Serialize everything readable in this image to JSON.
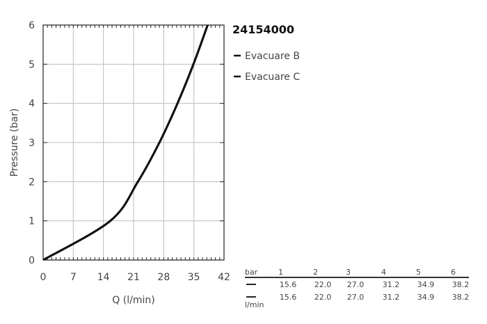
{
  "chart_data": {
    "type": "line",
    "title": "24154000",
    "xlabel": "Q (l/min)",
    "ylabel": "Pressure (bar)",
    "xlim": [
      0,
      42
    ],
    "ylim": [
      0,
      6
    ],
    "x_ticks": [
      "0",
      "7",
      "14",
      "21",
      "28",
      "35",
      "42"
    ],
    "y_ticks": [
      "0",
      "1",
      "2",
      "3",
      "4",
      "5",
      "6"
    ],
    "grid": true,
    "legend_position": "top-right",
    "series": [
      {
        "name": "Evacuare B",
        "color": "#111111",
        "x": [
          0,
          15.6,
          22.0,
          27.0,
          31.2,
          34.9,
          38.2
        ],
        "y": [
          0,
          1,
          2,
          3,
          4,
          5,
          6
        ]
      },
      {
        "name": "Evacuare C",
        "color": "#111111",
        "x": [
          0,
          15.6,
          22.0,
          27.0,
          31.2,
          34.9,
          38.2
        ],
        "y": [
          0,
          1,
          2,
          3,
          4,
          5,
          6
        ]
      }
    ]
  },
  "table": {
    "header_label": "bar",
    "columns": [
      "1",
      "2",
      "3",
      "4",
      "5",
      "6"
    ],
    "unit_label": "l/min",
    "rows": [
      {
        "values": [
          "15.6",
          "22.0",
          "27.0",
          "31.2",
          "34.9",
          "38.2"
        ]
      },
      {
        "values": [
          "15.6",
          "22.0",
          "27.0",
          "31.2",
          "34.9",
          "38.2"
        ]
      }
    ]
  }
}
